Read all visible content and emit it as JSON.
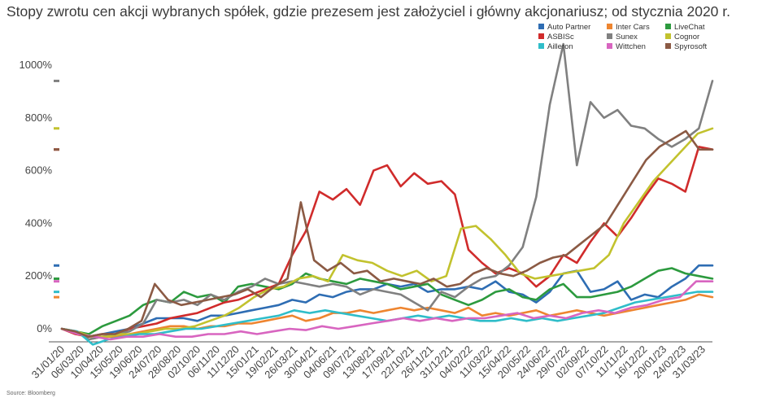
{
  "chart_data": {
    "type": "line",
    "title": "Stopy zwrotu cen akcji wybranych spółek, gdzie prezesem jest założyciel i główny akcjonariusz; od stycznia 2020 r.",
    "source": "Source: Bloomberg",
    "y_ticks": [
      "0%",
      "200%",
      "400%",
      "600%",
      "800%",
      "1000%"
    ],
    "ylim": [
      -60,
      1120
    ],
    "x_ticks": [
      "31/01/20",
      "06/03/20",
      "10/04/20",
      "15/05/20",
      "19/06/20",
      "24/07/20",
      "28/08/20",
      "02/10/20",
      "06/11/20",
      "11/12/20",
      "15/01/21",
      "19/02/21",
      "26/03/21",
      "30/04/21",
      "04/06/21",
      "09/07/21",
      "13/08/21",
      "17/09/21",
      "22/10/21",
      "26/11/21",
      "31/12/21",
      "04/02/22",
      "11/03/22",
      "15/04/22",
      "20/05/22",
      "24/06/22",
      "29/07/22",
      "02/09/22",
      "07/10/22",
      "11/11/22",
      "16/12/22",
      "20/01/23",
      "24/02/23",
      "31/03/23"
    ],
    "grid": "none",
    "legend_placement": "top-right",
    "series": [
      {
        "name": "Auto Partner",
        "color": "#2e6db3",
        "values": [
          0,
          -10,
          -30,
          -20,
          -10,
          0,
          20,
          40,
          40,
          40,
          30,
          50,
          50,
          60,
          70,
          80,
          90,
          110,
          100,
          130,
          120,
          140,
          150,
          150,
          170,
          160,
          170,
          140,
          150,
          150,
          160,
          150,
          180,
          140,
          130,
          100,
          140,
          210,
          220,
          140,
          150,
          180,
          110,
          130,
          120,
          160,
          190,
          240,
          240
        ]
      },
      {
        "name": "Inter Cars",
        "color": "#ee8530",
        "values": [
          0,
          -10,
          -40,
          -30,
          -30,
          -20,
          -10,
          0,
          10,
          10,
          0,
          10,
          10,
          20,
          20,
          30,
          40,
          50,
          30,
          40,
          60,
          60,
          70,
          60,
          70,
          80,
          70,
          80,
          70,
          60,
          80,
          50,
          60,
          50,
          60,
          70,
          50,
          60,
          70,
          60,
          50,
          60,
          70,
          80,
          90,
          100,
          110,
          130,
          120
        ]
      },
      {
        "name": "LiveChat",
        "color": "#2c9a3e",
        "values": [
          0,
          -10,
          -20,
          10,
          30,
          50,
          90,
          110,
          100,
          140,
          120,
          130,
          100,
          160,
          170,
          160,
          150,
          170,
          210,
          190,
          180,
          170,
          190,
          180,
          170,
          150,
          160,
          170,
          130,
          110,
          90,
          110,
          140,
          150,
          120,
          110,
          150,
          170,
          120,
          120,
          130,
          140,
          160,
          190,
          220,
          230,
          210,
          200,
          190
        ]
      },
      {
        "name": "ASBISc",
        "color": "#d02b2b",
        "values": [
          0,
          -20,
          -30,
          -20,
          -20,
          0,
          10,
          20,
          40,
          50,
          60,
          80,
          100,
          110,
          130,
          150,
          170,
          280,
          370,
          520,
          490,
          530,
          470,
          600,
          620,
          540,
          590,
          550,
          560,
          510,
          300,
          250,
          210,
          230,
          210,
          160,
          200,
          280,
          250,
          330,
          400,
          350,
          420,
          500,
          570,
          550,
          520,
          690,
          680
        ]
      },
      {
        "name": "Sunex",
        "color": "#808080",
        "values": [
          0,
          -10,
          -40,
          -30,
          -20,
          -10,
          20,
          110,
          100,
          110,
          90,
          130,
          110,
          140,
          160,
          190,
          170,
          180,
          170,
          160,
          170,
          160,
          130,
          150,
          140,
          130,
          100,
          70,
          140,
          120,
          160,
          190,
          200,
          240,
          310,
          500,
          850,
          1080,
          620,
          860,
          800,
          830,
          770,
          760,
          720,
          690,
          720,
          760,
          940
        ]
      },
      {
        "name": "Cognor",
        "color": "#c2c22e",
        "values": [
          0,
          -10,
          -30,
          -30,
          -20,
          -20,
          -10,
          0,
          0,
          10,
          30,
          50,
          80,
          120,
          150,
          160,
          190,
          200,
          180,
          280,
          260,
          250,
          220,
          200,
          220,
          180,
          200,
          380,
          390,
          340,
          280,
          210,
          190,
          200,
          210,
          220,
          230,
          280,
          400,
          480,
          560,
          620,
          680,
          740,
          760
        ]
      },
      {
        "name": "Ailleron",
        "color": "#2fbdc9",
        "values": [
          0,
          -10,
          -60,
          -40,
          -30,
          -20,
          -20,
          -10,
          0,
          0,
          10,
          20,
          30,
          40,
          50,
          70,
          60,
          70,
          60,
          50,
          40,
          30,
          40,
          50,
          40,
          50,
          40,
          30,
          30,
          40,
          30,
          40,
          30,
          40,
          50,
          60,
          80,
          100,
          110,
          120,
          130,
          140,
          140
        ]
      },
      {
        "name": "Wittchen",
        "color": "#d865c0",
        "values": [
          0,
          -20,
          -30,
          -40,
          -30,
          -30,
          -20,
          -30,
          -30,
          -20,
          -20,
          -10,
          -20,
          -10,
          0,
          -5,
          10,
          0,
          10,
          20,
          30,
          40,
          30,
          40,
          30,
          40,
          40,
          50,
          60,
          40,
          50,
          40,
          60,
          70,
          60,
          80,
          90,
          110,
          120,
          180,
          180
        ]
      },
      {
        "name": "Spyrosoft",
        "color": "#8b5a44",
        "values": [
          0,
          -10,
          -30,
          -20,
          -20,
          0,
          30,
          170,
          110,
          90,
          100,
          110,
          120,
          130,
          150,
          120,
          160,
          190,
          480,
          260,
          220,
          250,
          210,
          220,
          180,
          190,
          180,
          170,
          190,
          160,
          170,
          210,
          230,
          210,
          200,
          220,
          250,
          270,
          280,
          320,
          360,
          400,
          480,
          560,
          640,
          690,
          720,
          750,
          680,
          680
        ]
      }
    ]
  }
}
